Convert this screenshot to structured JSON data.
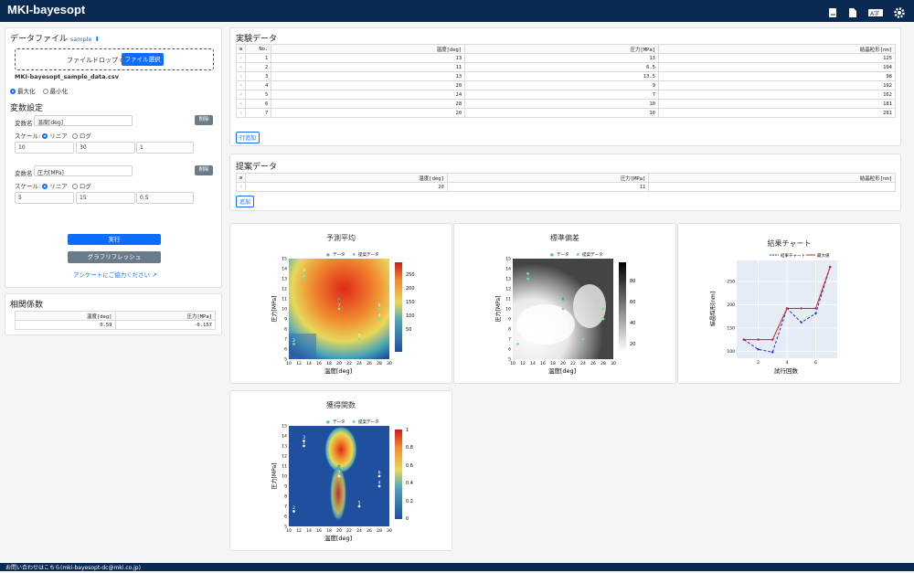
{
  "app": {
    "title": "MKI-bayesopt",
    "footer": "お問い合わせはこちら(mki-bayesopt-dc@mki.co.jp)"
  },
  "file": {
    "section_title": "データファイル",
    "sample_link": "sample",
    "drop_text": "ファイルドロップ or",
    "select_button": "ファイル選択",
    "filename": "MKI-bayesopt_sample_data.csv"
  },
  "mode": {
    "maximize": "最大化",
    "minimize": "最小化",
    "selected": "maximize"
  },
  "variables": {
    "section_title": "変数設定",
    "name_label": "変数名",
    "scale_label": "スケール:",
    "linear": "リニア",
    "log": "ログ",
    "delete_button": "削除",
    "items": [
      {
        "name": "温度[deg]",
        "min": "10",
        "max": "30",
        "step": "1"
      },
      {
        "name": "圧力[MPa]",
        "min": "5",
        "max": "15",
        "step": "0.5"
      }
    ]
  },
  "actions": {
    "run": "実行",
    "refresh": "グラフリフレッシュ",
    "survey": "アンケートにご協力ください"
  },
  "correlation": {
    "title": "相関係数",
    "headers": [
      "温度[deg]",
      "圧力[MPa]"
    ],
    "values": [
      "0.59",
      "-0.157"
    ]
  },
  "experiment": {
    "title": "実験データ",
    "headers": [
      "No.",
      "温度[deg]",
      "圧力[MPa]",
      "結晶粒形[nm]"
    ],
    "rows": [
      [
        "1",
        "13",
        "13",
        "125"
      ],
      [
        "2",
        "11",
        "6.5",
        "104"
      ],
      [
        "3",
        "13",
        "13.5",
        "98"
      ],
      [
        "4",
        "28",
        "9",
        "192"
      ],
      [
        "5",
        "24",
        "7",
        "162"
      ],
      [
        "6",
        "28",
        "10",
        "181"
      ],
      [
        "7",
        "20",
        "10",
        "281"
      ]
    ],
    "add_row": "行追加"
  },
  "proposal": {
    "title": "提案データ",
    "headers": [
      "温度[deg]",
      "圧力[MPa]",
      "結晶粒形[nm]"
    ],
    "row": [
      "20",
      "11",
      ""
    ],
    "add": "追加"
  },
  "charts": {
    "mean": {
      "title": "予測平均",
      "legend": [
        "データ",
        "提案データ"
      ],
      "xlabel": "温度[deg]",
      "ylabel": "圧力[MPa]",
      "cbar": [
        "250",
        "200",
        "150",
        "100",
        "50"
      ]
    },
    "std": {
      "title": "標準偏差",
      "legend": [
        "データ",
        "提案データ"
      ],
      "xlabel": "温度[deg]",
      "ylabel": "圧力[MPa]",
      "cbar": [
        "80",
        "60",
        "40",
        "20"
      ]
    },
    "result": {
      "title": "結果チャート",
      "legend": [
        "結果チャート",
        "最大値"
      ],
      "xlabel": "試行回数",
      "ylabel": "結晶粒形[nm]"
    },
    "acq": {
      "title": "獲得関数",
      "legend": [
        "データ",
        "提案データ"
      ],
      "xlabel": "温度[deg]",
      "ylabel": "圧力[MPa]",
      "cbar": [
        "1",
        "0.8",
        "0.6",
        "0.4",
        "0.2",
        "0"
      ]
    }
  },
  "chart_data": [
    {
      "type": "heatmap",
      "title": "予測平均",
      "x_ticks": [
        10,
        12,
        14,
        16,
        18,
        20,
        22,
        24,
        26,
        28,
        30
      ],
      "y_ticks": [
        5,
        6,
        7,
        8,
        9,
        10,
        11,
        12,
        13,
        14,
        15
      ],
      "points": [
        {
          "label": "1",
          "x": 13,
          "y": 13
        },
        {
          "label": "2",
          "x": 11,
          "y": 6.5
        },
        {
          "label": "3",
          "x": 13,
          "y": 13.5
        },
        {
          "label": "4",
          "x": 28,
          "y": 9
        },
        {
          "label": "5",
          "x": 24,
          "y": 7
        },
        {
          "label": "6",
          "x": 28,
          "y": 10
        },
        {
          "label": "7",
          "x": 20,
          "y": 10
        }
      ],
      "proposal": {
        "x": 20,
        "y": 11
      }
    },
    {
      "type": "line",
      "title": "結果チャート",
      "x": [
        1,
        2,
        3,
        4,
        5,
        6,
        7
      ],
      "series": [
        {
          "name": "結果チャート",
          "values": [
            125,
            104,
            98,
            192,
            162,
            181,
            281
          ]
        },
        {
          "name": "最大値",
          "values": [
            125,
            125,
            125,
            192,
            192,
            192,
            281
          ]
        }
      ],
      "xlabel": "試行回数",
      "ylabel": "結晶粒形[nm]",
      "yticks": [
        100,
        150,
        200,
        250
      ],
      "xticks": [
        2,
        4,
        6
      ]
    }
  ],
  "colors": {
    "navbar": "#0b2a52",
    "primary": "#0d6efd",
    "grey": "#6c7b8a"
  }
}
